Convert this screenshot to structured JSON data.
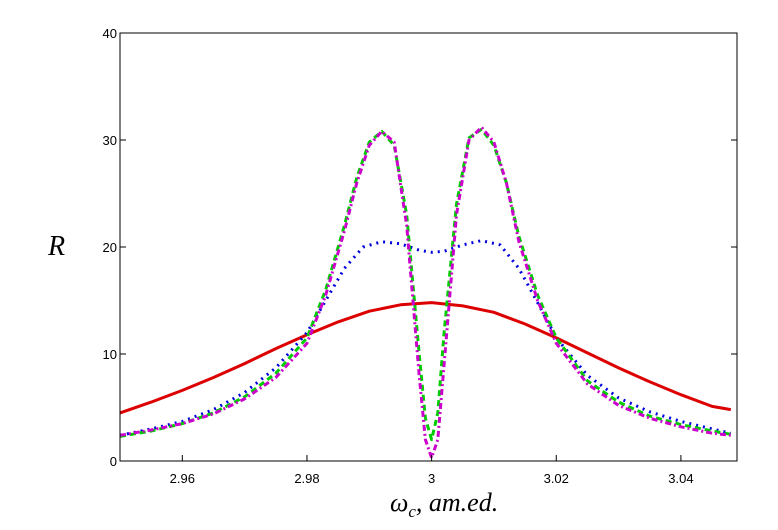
{
  "chart_data": {
    "type": "line",
    "xlabel": "ω",
    "xlabel_subscript": "c",
    "xlabel_suffix": ", am.ed.",
    "ylabel": "R",
    "xlim": [
      2.95,
      3.049
    ],
    "ylim": [
      0,
      40
    ],
    "x_ticks": [
      "2.96",
      "2.98",
      "3",
      "3.02",
      "3.04"
    ],
    "y_ticks": [
      "0",
      "10",
      "20",
      "30",
      "40"
    ],
    "grid": false,
    "series": [
      {
        "color": "#dd0000",
        "style": "solid",
        "x": [
          2.95,
          2.955,
          2.96,
          2.965,
          2.97,
          2.975,
          2.98,
          2.985,
          2.99,
          2.995,
          3.0,
          3.005,
          3.01,
          3.015,
          3.02,
          3.025,
          3.03,
          3.035,
          3.04,
          3.045,
          3.048
        ],
        "y": [
          4.5,
          5.5,
          6.6,
          7.8,
          9.1,
          10.5,
          11.8,
          13.0,
          14.0,
          14.6,
          14.8,
          14.5,
          13.9,
          12.8,
          11.5,
          10.1,
          8.7,
          7.4,
          6.2,
          5.1,
          4.8
        ]
      },
      {
        "color": "#0000dd",
        "style": "dotted",
        "x": [
          2.95,
          2.955,
          2.96,
          2.965,
          2.97,
          2.975,
          2.98,
          2.983,
          2.986,
          2.989,
          2.992,
          2.995,
          2.998,
          3.0,
          3.002,
          3.005,
          3.008,
          3.011,
          3.014,
          3.017,
          3.02,
          3.025,
          3.03,
          3.035,
          3.04,
          3.045,
          3.048
        ],
        "y": [
          2.4,
          3.0,
          3.7,
          4.8,
          6.4,
          8.7,
          12.0,
          15.0,
          18.0,
          20.0,
          20.5,
          20.3,
          19.7,
          19.5,
          19.6,
          20.2,
          20.6,
          20.2,
          18.0,
          14.8,
          11.5,
          8.0,
          5.9,
          4.6,
          3.7,
          3.0,
          2.6
        ]
      },
      {
        "color": "#00cc00",
        "style": "dashed",
        "x": [
          2.95,
          2.955,
          2.96,
          2.965,
          2.97,
          2.975,
          2.98,
          2.983,
          2.986,
          2.988,
          2.99,
          2.992,
          2.994,
          2.996,
          2.998,
          2.999,
          3.0,
          3.001,
          3.002,
          3.004,
          3.006,
          3.008,
          3.01,
          3.012,
          3.014,
          3.017,
          3.02,
          3.025,
          3.03,
          3.035,
          3.04,
          3.045,
          3.048
        ],
        "y": [
          2.3,
          2.8,
          3.5,
          4.5,
          6.0,
          8.2,
          11.5,
          16.0,
          22.0,
          26.5,
          29.8,
          30.8,
          29.5,
          23.0,
          10.0,
          4.0,
          2.0,
          4.5,
          12.0,
          24.0,
          30.2,
          31.0,
          29.5,
          26.0,
          21.0,
          15.5,
          11.5,
          7.5,
          5.5,
          4.2,
          3.4,
          2.8,
          2.5
        ]
      },
      {
        "color": "#cc00cc",
        "style": "dash-dot",
        "x": [
          2.95,
          2.955,
          2.96,
          2.965,
          2.97,
          2.975,
          2.98,
          2.983,
          2.986,
          2.988,
          2.99,
          2.992,
          2.994,
          2.996,
          2.998,
          2.999,
          3.0,
          3.001,
          3.002,
          3.004,
          3.006,
          3.008,
          3.01,
          3.012,
          3.014,
          3.017,
          3.02,
          3.025,
          3.03,
          3.035,
          3.04,
          3.045,
          3.048
        ],
        "y": [
          2.4,
          2.9,
          3.5,
          4.4,
          5.8,
          7.8,
          11.0,
          15.5,
          21.5,
          26.0,
          29.5,
          30.8,
          29.8,
          22.0,
          8.0,
          2.0,
          0.3,
          2.0,
          9.0,
          23.0,
          30.0,
          31.2,
          29.8,
          26.0,
          20.5,
          15.0,
          11.0,
          7.2,
          5.2,
          4.0,
          3.2,
          2.6,
          2.4
        ]
      }
    ]
  }
}
